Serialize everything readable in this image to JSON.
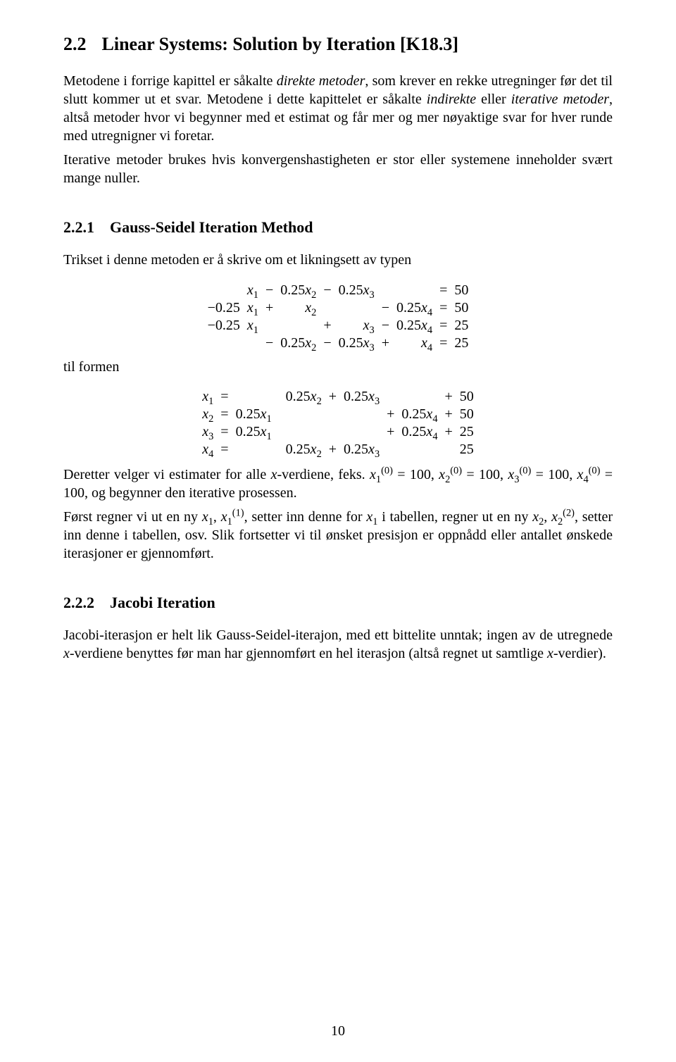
{
  "page_number": "10",
  "section": {
    "number": "2.2",
    "title": "Linear Systems: Solution by Iteration [K18.3]"
  },
  "para1_a": "Metodene i forrige kapittel er såkalte ",
  "para1_italic1": "direkte metoder",
  "para1_b": ", som krever en rekke utregninger før det til slutt kommer ut et svar. Metodene i dette kapittelet er såkalte ",
  "para1_italic2": "indirekte",
  "para1_c": " eller ",
  "para1_italic3": "iterative metoder",
  "para1_d": ", altså metoder hvor vi begynner med et estimat og får mer og mer nøyaktige svar for hver runde med utregnigner vi foretar.",
  "para2": "Iterative metoder brukes hvis konvergenshastigheten er stor eller systemene inneholder svært mange nuller.",
  "subsection1": {
    "number": "2.2.1",
    "title": "Gauss-Seidel Iteration Method"
  },
  "para3": "Trikset i denne metoden er å skrive om et likningsett av typen",
  "til_formen": "til formen",
  "eq1": {
    "row1": {
      "c1l": "",
      "c1r": "x₁",
      "op1": "−",
      "c2": "0.25x₂",
      "op2": "−",
      "c3": "0.25x₃",
      "op3": "",
      "c4": "",
      "eq": "=",
      "rhs": "50"
    },
    "row2": {
      "c1l": "−0.25",
      "c1r": "x₁",
      "op1": "+",
      "c2": "x₂",
      "op2": "",
      "c3": "",
      "op3": "−",
      "c4": "0.25x₄",
      "eq": "=",
      "rhs": "50"
    },
    "row3": {
      "c1l": "−0.25",
      "c1r": "x₁",
      "op1": "",
      "c2": "",
      "op2": "+",
      "c3": "x₃",
      "op3": "−",
      "c4": "0.25x₄",
      "eq": "=",
      "rhs": "25"
    },
    "row4": {
      "c1l": "",
      "c1r": "",
      "op1": "−",
      "c2": "0.25x₂",
      "op2": "−",
      "c3": "0.25x₃",
      "op3": "+",
      "c4": "x₄",
      "eq": "=",
      "rhs": "25"
    }
  },
  "eq2": {
    "row1": {
      "lhs": "x₁",
      "eq": "=",
      "a": "",
      "op1": "",
      "b": "0.25x₂",
      "op2": "+",
      "c": "0.25x₃",
      "op3": "",
      "d": "",
      "op4": "+",
      "rhs": "50"
    },
    "row2": {
      "lhs": "x₂",
      "eq": "=",
      "a": "0.25x₁",
      "op1": "",
      "b": "",
      "op2": "",
      "c": "",
      "op3": "+",
      "d": "0.25x₄",
      "op4": "+",
      "rhs": "50"
    },
    "row3": {
      "lhs": "x₃",
      "eq": "=",
      "a": "0.25x₁",
      "op1": "",
      "b": "",
      "op2": "",
      "c": "",
      "op3": "+",
      "d": "0.25x₄",
      "op4": "+",
      "rhs": "25"
    },
    "row4": {
      "lhs": "x₄",
      "eq": "=",
      "a": "",
      "op1": "",
      "b": "0.25x₂",
      "op2": "+",
      "c": "0.25x₃",
      "op3": "",
      "d": "",
      "op4": "",
      "rhs": "25"
    }
  },
  "para4_a": "Deretter velger vi estimater for alle ",
  "para4_xlabel": "x",
  "para4_b": "-verdiene, feks. ",
  "para4_c": ", og begynner den iterative prosessen.",
  "initvals": {
    "x1": "= 100, ",
    "x2": "= 100, ",
    "x3": "= 100, ",
    "x4": "= 100"
  },
  "para5_a": "Først regner vi ut en ny ",
  "para5_b": ", setter inn denne for ",
  "para5_c": " i tabellen, regner ut en ny ",
  "para5_d": ", setter inn denne i tabellen, osv. Slik fortsetter vi til ønsket presisjon er oppnådd eller antallet ønskede iterasjoner er gjennomført.",
  "subsection2": {
    "number": "2.2.2",
    "title": "Jacobi Iteration"
  },
  "para6_a": "Jacobi-iterasjon er helt lik Gauss-Seidel-iterajon, med ett bittelite unntak; ingen av de utregnede ",
  "para6_b": "-verdiene benyttes før man har gjennomført en hel iterasjon (altså regnet ut samtlige ",
  "para6_c": "-verdier)."
}
